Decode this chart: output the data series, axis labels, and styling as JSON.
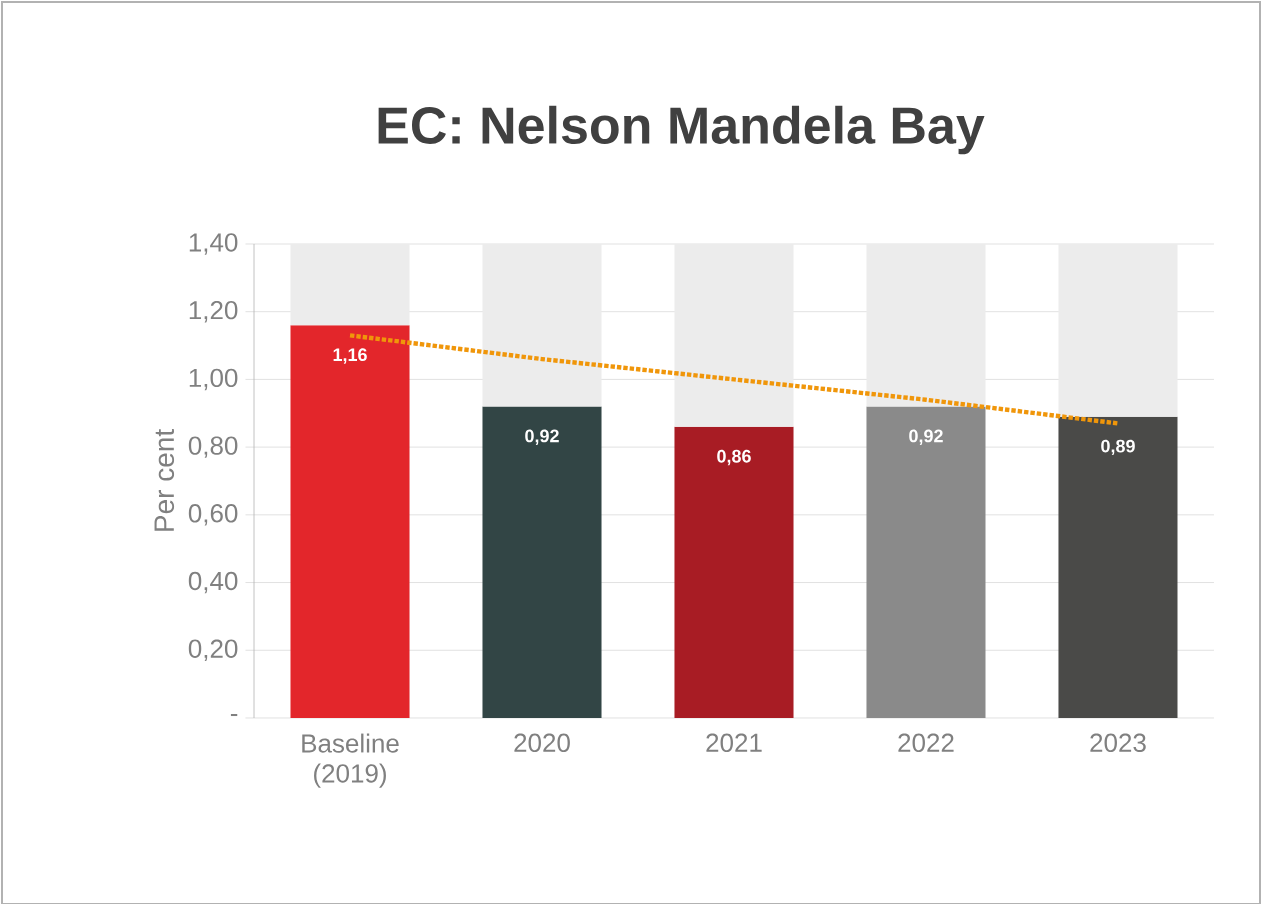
{
  "chart_data": {
    "type": "bar",
    "title": "EC: Nelson Mandela Bay",
    "ylabel": "Per cent",
    "categories": [
      "Baseline (2019)",
      "2020",
      "2021",
      "2022",
      "2023"
    ],
    "series": [
      {
        "colors": [
          "#e3262b",
          "#324545",
          "#a81c24",
          "#8a8a8a",
          "#4a4a48"
        ],
        "values": [
          1.16,
          0.92,
          0.86,
          0.92,
          0.89
        ],
        "value_labels": [
          "1,16",
          "0,92",
          "0,86",
          "0,92",
          "0,89"
        ]
      },
      {
        "colors": [
          "#ececec",
          "#ececec",
          "#ececec",
          "#ececec",
          "#ececec"
        ],
        "values": [
          0.24,
          0.48,
          0.54,
          0.48,
          0.51
        ]
      },
      {
        "type": "line",
        "color": "#f0960a",
        "line_style": "dotted",
        "values": [
          1.13,
          1.06,
          1.0,
          0.94,
          0.87
        ]
      }
    ],
    "ylim": [
      0,
      1.4
    ],
    "yticks": [
      {
        "value": 0,
        "label": "-"
      },
      {
        "value": 0.2,
        "label": "0,20"
      },
      {
        "value": 0.4,
        "label": "0,40"
      },
      {
        "value": 0.6,
        "label": "0,60"
      },
      {
        "value": 0.8,
        "label": "0,80"
      },
      {
        "value": 1.0,
        "label": "1,00"
      },
      {
        "value": 1.2,
        "label": "1,20"
      },
      {
        "value": 1.4,
        "label": "1,40"
      }
    ],
    "stacked": true,
    "grid": "y"
  }
}
